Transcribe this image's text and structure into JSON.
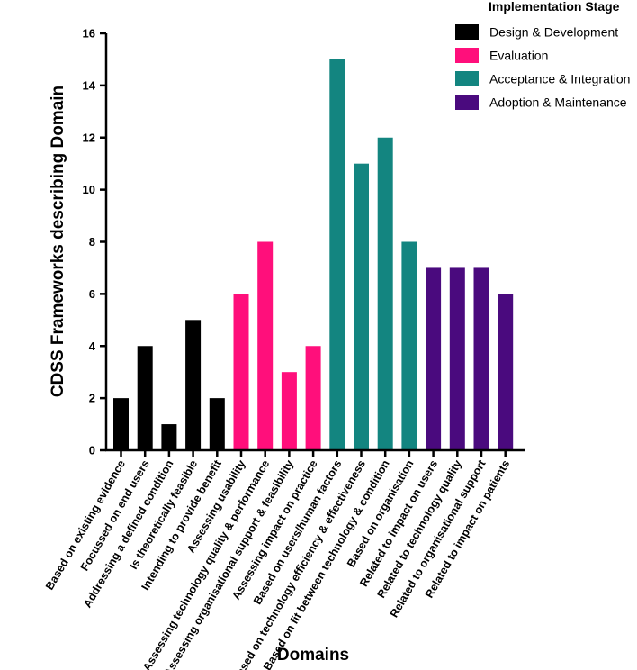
{
  "chart_data": {
    "type": "bar",
    "title": "",
    "xlabel": "Domains",
    "ylabel": "CDSS Frameworks describing Domain",
    "ylim": [
      0,
      16
    ],
    "yticks": [
      "0",
      "2",
      "4",
      "6",
      "8",
      "10",
      "12",
      "14",
      "16"
    ],
    "legend_title": "Implementation Stage",
    "legend_position": "top-right",
    "groups": [
      {
        "name": "Design & Development",
        "color": "#000000"
      },
      {
        "name": "Evaluation",
        "color": "#ff0f7b"
      },
      {
        "name": "Acceptance & Integration",
        "color": "#138580"
      },
      {
        "name": "Adoption & Maintenance",
        "color": "#4a0a7e"
      }
    ],
    "bars": [
      {
        "category": "Based on existing evidence",
        "value": 2,
        "group": 0
      },
      {
        "category": "Focussed on end users",
        "value": 4,
        "group": 0
      },
      {
        "category": "Addressing a defined condition",
        "value": 1,
        "group": 0
      },
      {
        "category": "Is theoretically feasible",
        "value": 5,
        "group": 0
      },
      {
        "category": "Intending to provide benefit",
        "value": 2,
        "group": 0
      },
      {
        "category": "Assessing usability",
        "value": 6,
        "group": 1
      },
      {
        "category": "Assessing technology quality & performance",
        "value": 8,
        "group": 1
      },
      {
        "category": "Assessing organisational support & feasibility",
        "value": 3,
        "group": 1
      },
      {
        "category": "Assessing impact on practice",
        "value": 4,
        "group": 1
      },
      {
        "category": "Based on users/human factors",
        "value": 15,
        "group": 2
      },
      {
        "category": "Based on technology efficiency & effectiveness",
        "value": 11,
        "group": 2
      },
      {
        "category": "Based on fit between technology & condition",
        "value": 12,
        "group": 2
      },
      {
        "category": "Based on organisation",
        "value": 8,
        "group": 2
      },
      {
        "category": "Related to impact on users",
        "value": 7,
        "group": 3
      },
      {
        "category": "Related to technology quality",
        "value": 7,
        "group": 3
      },
      {
        "category": "Related to organisational support",
        "value": 7,
        "group": 3
      },
      {
        "category": "Related to impact on patients",
        "value": 6,
        "group": 3
      }
    ]
  }
}
